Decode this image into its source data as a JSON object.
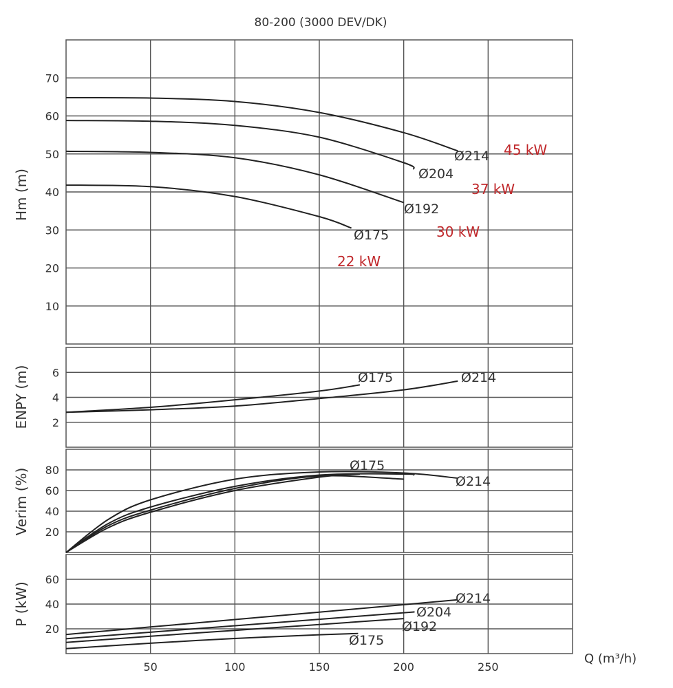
{
  "chart_data": {
    "type": "line",
    "title": "80-200 (3000 DEV/DK)",
    "xlabel": "Q (m³/h)",
    "xlim": [
      0,
      300
    ],
    "x_ticks": [
      50,
      100,
      150,
      200,
      250
    ],
    "panels": [
      {
        "id": "head",
        "ylabel": "Hm (m)",
        "ylim": [
          0,
          80
        ],
        "y_ticks": [
          10,
          20,
          30,
          40,
          50,
          60,
          70
        ],
        "series": [
          {
            "name": "Ø214",
            "x": [
              0,
              50,
              100,
              150,
              200,
              232
            ],
            "y": [
              64.8,
              64.7,
              63.8,
              60.9,
              55.6,
              50.8
            ]
          },
          {
            "name": "Ø204",
            "x": [
              0,
              50,
              100,
              150,
              200,
              206
            ],
            "y": [
              58.8,
              58.6,
              57.5,
              54.4,
              47.7,
              46.0
            ]
          },
          {
            "name": "Ø192",
            "x": [
              0,
              50,
              100,
              150,
              200
            ],
            "y": [
              50.7,
              50.4,
              49.0,
              44.5,
              37.2
            ]
          },
          {
            "name": "Ø175",
            "x": [
              0,
              50,
              100,
              150,
              169
            ],
            "y": [
              41.8,
              41.4,
              38.8,
              33.5,
              30.5
            ]
          }
        ],
        "power_labels": [
          "45 kW",
          "37 kW",
          "30 kW",
          "22 kW"
        ]
      },
      {
        "id": "npsh",
        "ylabel": "ENPY (m)",
        "ylim": [
          0,
          8
        ],
        "y_ticks": [
          2,
          4,
          6
        ],
        "series": [
          {
            "name": "Ø175",
            "x": [
              0,
              50,
              100,
              150,
              174
            ],
            "y": [
              2.8,
              3.2,
              3.8,
              4.5,
              5.0
            ]
          },
          {
            "name": "Ø214",
            "x": [
              0,
              50,
              100,
              150,
              200,
              232
            ],
            "y": [
              2.8,
              3.0,
              3.3,
              3.9,
              4.6,
              5.3
            ]
          }
        ]
      },
      {
        "id": "efficiency",
        "ylabel": "Verim (%)",
        "ylim": [
          0,
          100
        ],
        "y_ticks": [
          20,
          40,
          60,
          80
        ],
        "series": [
          {
            "name": "Ø214",
            "x": [
              0,
              25,
              50,
              100,
              150,
              200,
              232
            ],
            "y": [
              0,
              32,
              51,
              71,
              78,
              77,
              72
            ]
          },
          {
            "name": "Ø204",
            "x": [
              0,
              25,
              50,
              100,
              150,
              200,
              206
            ],
            "y": [
              0,
              28,
              44,
              64,
              75,
              76,
              75
            ]
          },
          {
            "name": "Ø192",
            "x": [
              0,
              25,
              50,
              100,
              150,
              200
            ],
            "y": [
              0,
              26,
              41,
              62,
              74,
              71
            ]
          },
          {
            "name": "Ø175",
            "x": [
              0,
              25,
              50,
              100,
              150,
              174
            ],
            "y": [
              0,
              24,
              39,
              60,
              73,
              76
            ]
          }
        ],
        "labels": [
          "Ø175",
          "Ø214"
        ]
      },
      {
        "id": "power",
        "ylabel": "P (kW)",
        "ylim": [
          0,
          80
        ],
        "y_ticks": [
          20,
          40,
          60
        ],
        "series": [
          {
            "name": "Ø214",
            "x": [
              0,
              50,
              100,
              150,
              200,
              232
            ],
            "y": [
              15.4,
              21.5,
              27.5,
              33.5,
              39.5,
              43.5
            ]
          },
          {
            "name": "Ø204",
            "x": [
              0,
              50,
              100,
              150,
              200,
              206
            ],
            "y": [
              12.0,
              17.3,
              22.5,
              27.7,
              33.0,
              33.6
            ]
          },
          {
            "name": "Ø192",
            "x": [
              0,
              50,
              100,
              150,
              200
            ],
            "y": [
              9.0,
              14.0,
              18.8,
              23.5,
              28.3
            ]
          },
          {
            "name": "Ø175",
            "x": [
              0,
              50,
              100,
              150,
              173
            ],
            "y": [
              4.0,
              8.4,
              12.2,
              15.2,
              16.2
            ]
          }
        ]
      }
    ]
  }
}
